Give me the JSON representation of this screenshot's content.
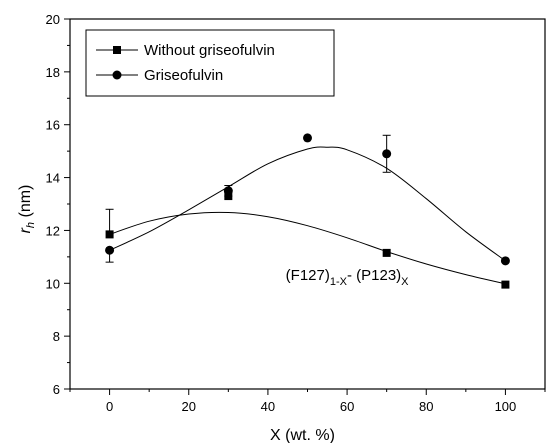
{
  "chart_data": {
    "type": "scatter",
    "xlabel": "X (wt. %)",
    "ylabel_main": "r",
    "ylabel_sub": "h",
    "ylabel_unit": " (nm)",
    "xlim": [
      -10,
      110
    ],
    "ylim": [
      6,
      20
    ],
    "xticks": [
      0,
      20,
      40,
      60,
      80,
      100
    ],
    "yticks": [
      6,
      8,
      10,
      12,
      14,
      16,
      18,
      20
    ],
    "grid": false,
    "legend_position": "top-left",
    "annotation": {
      "parts": [
        {
          "text": "(F127)",
          "sub": false
        },
        {
          "text": "1-X",
          "sub": true
        },
        {
          "text": "- (P123)",
          "sub": false
        },
        {
          "text": "X",
          "sub": true
        }
      ],
      "x": 60,
      "y": 10.5
    },
    "series": [
      {
        "name": "Without griseofulvin",
        "marker": "square",
        "x": [
          0,
          30,
          70,
          100
        ],
        "y": [
          11.85,
          13.3,
          11.15,
          9.95
        ],
        "error_upper": [
          0.95,
          0,
          0,
          0
        ],
        "error_lower": [
          0,
          0,
          0,
          0
        ],
        "fit": [
          [
            0,
            11.85
          ],
          [
            10,
            12.35
          ],
          [
            20,
            12.62
          ],
          [
            30,
            12.68
          ],
          [
            40,
            12.52
          ],
          [
            50,
            12.18
          ],
          [
            60,
            11.72
          ],
          [
            70,
            11.2
          ],
          [
            80,
            10.73
          ],
          [
            90,
            10.33
          ],
          [
            100,
            9.98
          ]
        ]
      },
      {
        "name": "Griseofulvin",
        "marker": "circle",
        "x": [
          0,
          30,
          50,
          70,
          100
        ],
        "y": [
          11.25,
          13.5,
          15.5,
          14.9,
          10.85
        ],
        "error_upper": [
          0,
          0.2,
          0,
          0.7,
          0
        ],
        "error_lower": [
          0.45,
          0.2,
          0,
          0.7,
          0
        ],
        "fit": [
          [
            0,
            11.25
          ],
          [
            10,
            11.95
          ],
          [
            20,
            12.78
          ],
          [
            30,
            13.65
          ],
          [
            40,
            14.52
          ],
          [
            50,
            15.08
          ],
          [
            55,
            15.15
          ],
          [
            60,
            15.05
          ],
          [
            70,
            14.35
          ],
          [
            80,
            13.2
          ],
          [
            90,
            11.95
          ],
          [
            100,
            10.85
          ]
        ]
      }
    ]
  }
}
